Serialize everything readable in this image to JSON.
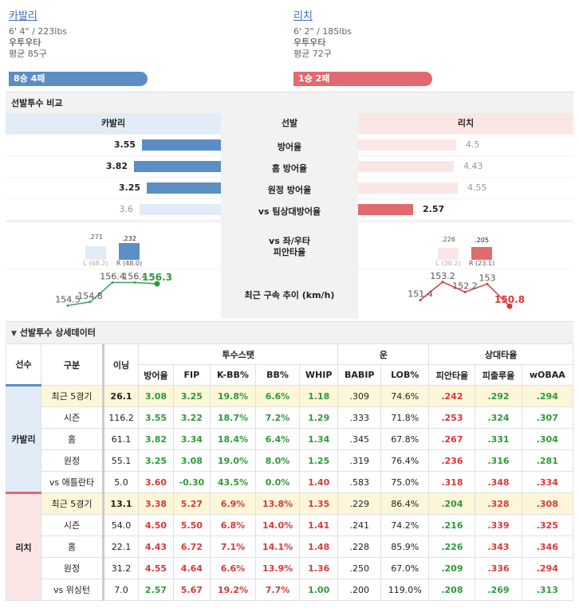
{
  "left_player": {
    "name": "카발리",
    "body": "6' 4\" / 223lbs",
    "hand": "우투우타",
    "avg": "평균 85구",
    "record": "8승 4패",
    "color": "#5b8ec4"
  },
  "right_player": {
    "name": "리치",
    "body": "6' 2\" / 185lbs",
    "hand": "우투우타",
    "avg": "평균 72구",
    "record": "1승 2패",
    "color": "#e06a6e"
  },
  "compare": {
    "section_title": "선발투수 비교",
    "header_left": "카발리",
    "header_mid": "선발",
    "header_right": "리치",
    "rows": [
      {
        "label": "방어율",
        "left": "3.55",
        "right": "4.5",
        "left_frac": 0.62,
        "right_frac": 0.82,
        "left_strong": true,
        "right_strong": false
      },
      {
        "label": "홈 방어율",
        "left": "3.82",
        "right": "4.43",
        "left_frac": 0.68,
        "right_frac": 0.8,
        "left_strong": true,
        "right_strong": false
      },
      {
        "label": "원정 방어율",
        "left": "3.25",
        "right": "4.55",
        "left_frac": 0.58,
        "right_frac": 0.83,
        "left_strong": true,
        "right_strong": false
      },
      {
        "label": "vs 팀상대방어율",
        "left": "3.6",
        "right": "2.57",
        "left_frac": 0.64,
        "right_frac": 0.46,
        "left_strong": false,
        "right_strong": true
      }
    ],
    "split_label_1": "vs 좌/우타",
    "split_label_2": "피안타율",
    "left_split": {
      "l_val": ".271",
      "r_val": ".232",
      "l_lab": "L (68.2)",
      "r_lab": "R (48.0)",
      "l_frac": 0.6,
      "r_frac": 0.75
    },
    "right_split": {
      "l_val": ".226",
      "r_val": ".205",
      "l_lab": "L (30.2)",
      "r_lab": "R (23.1)",
      "l_frac": 0.55,
      "r_frac": 0.58
    },
    "velo_label": "최근 구속 추이 (km/h)",
    "left_velo": [
      "154.5",
      "154.8",
      "156.4",
      "156.4",
      "156.3"
    ],
    "right_velo": [
      "151.4",
      "153.2",
      "152.2",
      "153",
      "150.8"
    ]
  },
  "detail": {
    "section_title": "선발투수 상세데이터",
    "toggle_icon": "triangle-down-icon",
    "h_player": "선수",
    "h_type": "구분",
    "h_inning": "이닝",
    "h_pitch": "투수스탯",
    "h_luck": "운",
    "h_opp": "상대타율",
    "cols": [
      "방어율",
      "FIP",
      "K-BB%",
      "BB%",
      "WHIP",
      "BABIP",
      "LOB%",
      "피안타율",
      "피출루율",
      "wOBAA"
    ],
    "groups": [
      {
        "player": "카발리",
        "rows": [
          {
            "type": "최근 5경기",
            "ip": "26.1",
            "v": [
              "3.08",
              "3.25",
              "19.8%",
              "6.6%",
              "1.18",
              ".309",
              "74.6%",
              ".242",
              ".292",
              ".294"
            ],
            "c": [
              "g",
              "g",
              "g",
              "g",
              "g",
              "k",
              "k",
              "r",
              "g",
              "g"
            ]
          },
          {
            "type": "시즌",
            "ip": "116.2",
            "v": [
              "3.55",
              "3.22",
              "18.7%",
              "7.2%",
              "1.29",
              ".333",
              "71.8%",
              ".253",
              ".324",
              ".307"
            ],
            "c": [
              "g",
              "g",
              "g",
              "g",
              "g",
              "k",
              "k",
              "r",
              "g",
              "g"
            ]
          },
          {
            "type": "홈",
            "ip": "61.1",
            "v": [
              "3.82",
              "3.34",
              "18.4%",
              "6.4%",
              "1.34",
              ".345",
              "67.8%",
              ".267",
              ".331",
              ".304"
            ],
            "c": [
              "g",
              "g",
              "g",
              "g",
              "g",
              "k",
              "k",
              "r",
              "g",
              "g"
            ]
          },
          {
            "type": "원정",
            "ip": "55.1",
            "v": [
              "3.25",
              "3.08",
              "19.0%",
              "8.0%",
              "1.25",
              ".319",
              "76.4%",
              ".236",
              ".316",
              ".281"
            ],
            "c": [
              "g",
              "g",
              "g",
              "g",
              "g",
              "k",
              "k",
              "r",
              "g",
              "g"
            ]
          },
          {
            "type": "vs 애틀란타",
            "ip": "5.0",
            "v": [
              "3.60",
              "-0.30",
              "43.5%",
              "0.0%",
              "1.40",
              ".583",
              "75.0%",
              ".318",
              ".348",
              ".334"
            ],
            "c": [
              "r",
              "g",
              "g",
              "g",
              "r",
              "k",
              "k",
              "r",
              "r",
              "r"
            ]
          }
        ]
      },
      {
        "player": "리치",
        "rows": [
          {
            "type": "최근 5경기",
            "ip": "13.1",
            "v": [
              "3.38",
              "5.27",
              "6.9%",
              "13.8%",
              "1.35",
              ".229",
              "86.4%",
              ".204",
              ".328",
              ".308"
            ],
            "c": [
              "r",
              "r",
              "r",
              "r",
              "r",
              "k",
              "k",
              "g",
              "r",
              "r"
            ]
          },
          {
            "type": "시즌",
            "ip": "54.0",
            "v": [
              "4.50",
              "5.50",
              "6.8%",
              "14.0%",
              "1.41",
              ".241",
              "74.2%",
              ".216",
              ".339",
              ".325"
            ],
            "c": [
              "r",
              "r",
              "r",
              "r",
              "r",
              "k",
              "k",
              "g",
              "r",
              "r"
            ]
          },
          {
            "type": "홈",
            "ip": "22.1",
            "v": [
              "4.43",
              "6.72",
              "7.1%",
              "14.1%",
              "1.48",
              ".228",
              "85.9%",
              ".226",
              ".343",
              ".346"
            ],
            "c": [
              "r",
              "r",
              "r",
              "r",
              "r",
              "k",
              "k",
              "g",
              "r",
              "r"
            ]
          },
          {
            "type": "원정",
            "ip": "31.2",
            "v": [
              "4.55",
              "4.64",
              "6.6%",
              "13.9%",
              "1.36",
              ".250",
              "67.0%",
              ".209",
              ".336",
              ".294"
            ],
            "c": [
              "r",
              "r",
              "r",
              "r",
              "r",
              "k",
              "k",
              "g",
              "r",
              "r"
            ]
          },
          {
            "type": "vs 위싱턴",
            "ip": "7.0",
            "v": [
              "2.57",
              "5.67",
              "19.2%",
              "7.7%",
              "1.00",
              ".200",
              "119.0%",
              ".208",
              ".269",
              ".313"
            ],
            "c": [
              "g",
              "r",
              "r",
              "r",
              "g",
              "k",
              "k",
              "g",
              "g",
              "g"
            ]
          }
        ]
      }
    ]
  }
}
